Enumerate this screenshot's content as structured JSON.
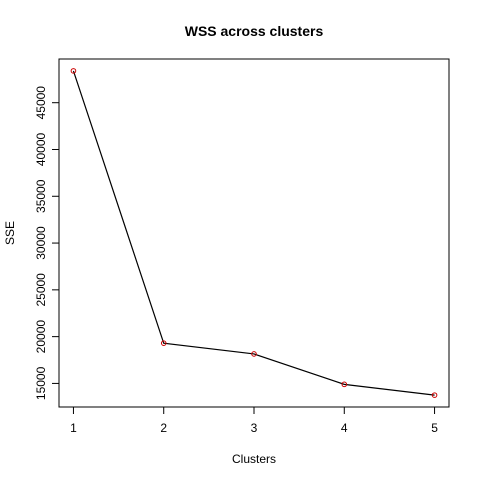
{
  "chart_data": {
    "type": "line",
    "title": "WSS across clusters",
    "xlabel": "Clusters",
    "ylabel": "SSE",
    "x": [
      1,
      2,
      3,
      4,
      5
    ],
    "values": [
      48400,
      19300,
      18150,
      14900,
      13750
    ],
    "xlim": [
      0.84,
      5.16
    ],
    "ylim": [
      12480,
      49670
    ],
    "x_ticks": [
      1,
      2,
      3,
      4,
      5
    ],
    "y_ticks": [
      15000,
      20000,
      25000,
      30000,
      35000,
      40000,
      45000
    ],
    "line_color": "#000000",
    "point_color": "#cc0000",
    "grid": false,
    "legend": "none"
  }
}
